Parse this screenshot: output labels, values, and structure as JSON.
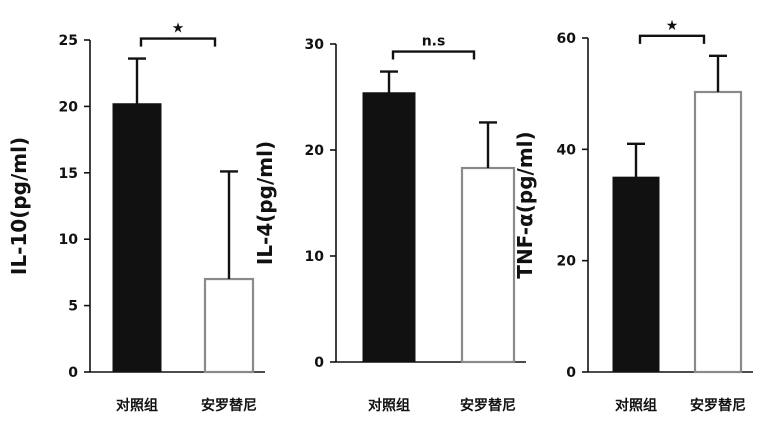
{
  "chart_data": [
    {
      "type": "bar",
      "ylabel": "IL-10(pg/ml)",
      "ylim": [
        0,
        25
      ],
      "yticks": [
        0,
        5,
        10,
        15,
        20,
        25
      ],
      "categories": [
        "对照组",
        "安罗替尼"
      ],
      "values": [
        20.2,
        7.0
      ],
      "errors": [
        3.4,
        8.1
      ],
      "colors": [
        "#111111",
        "#ffffff"
      ],
      "significance": "★"
    },
    {
      "type": "bar",
      "ylabel": "IL-4(pg/ml)",
      "ylim": [
        0,
        30
      ],
      "yticks": [
        0,
        10,
        20,
        30
      ],
      "categories": [
        "对照组",
        "安罗替尼"
      ],
      "values": [
        25.4,
        18.3
      ],
      "errors": [
        2.0,
        4.3
      ],
      "colors": [
        "#111111",
        "#ffffff"
      ],
      "significance": "n.s"
    },
    {
      "type": "bar",
      "ylabel": "TNF-α(pg/ml)",
      "ylim": [
        0,
        60
      ],
      "yticks": [
        0,
        20,
        40,
        60
      ],
      "categories": [
        "对照组",
        "安罗替尼"
      ],
      "values": [
        35.0,
        50.3
      ],
      "errors": [
        6.0,
        6.5
      ],
      "colors": [
        "#111111",
        "#ffffff"
      ],
      "significance": "★"
    }
  ]
}
